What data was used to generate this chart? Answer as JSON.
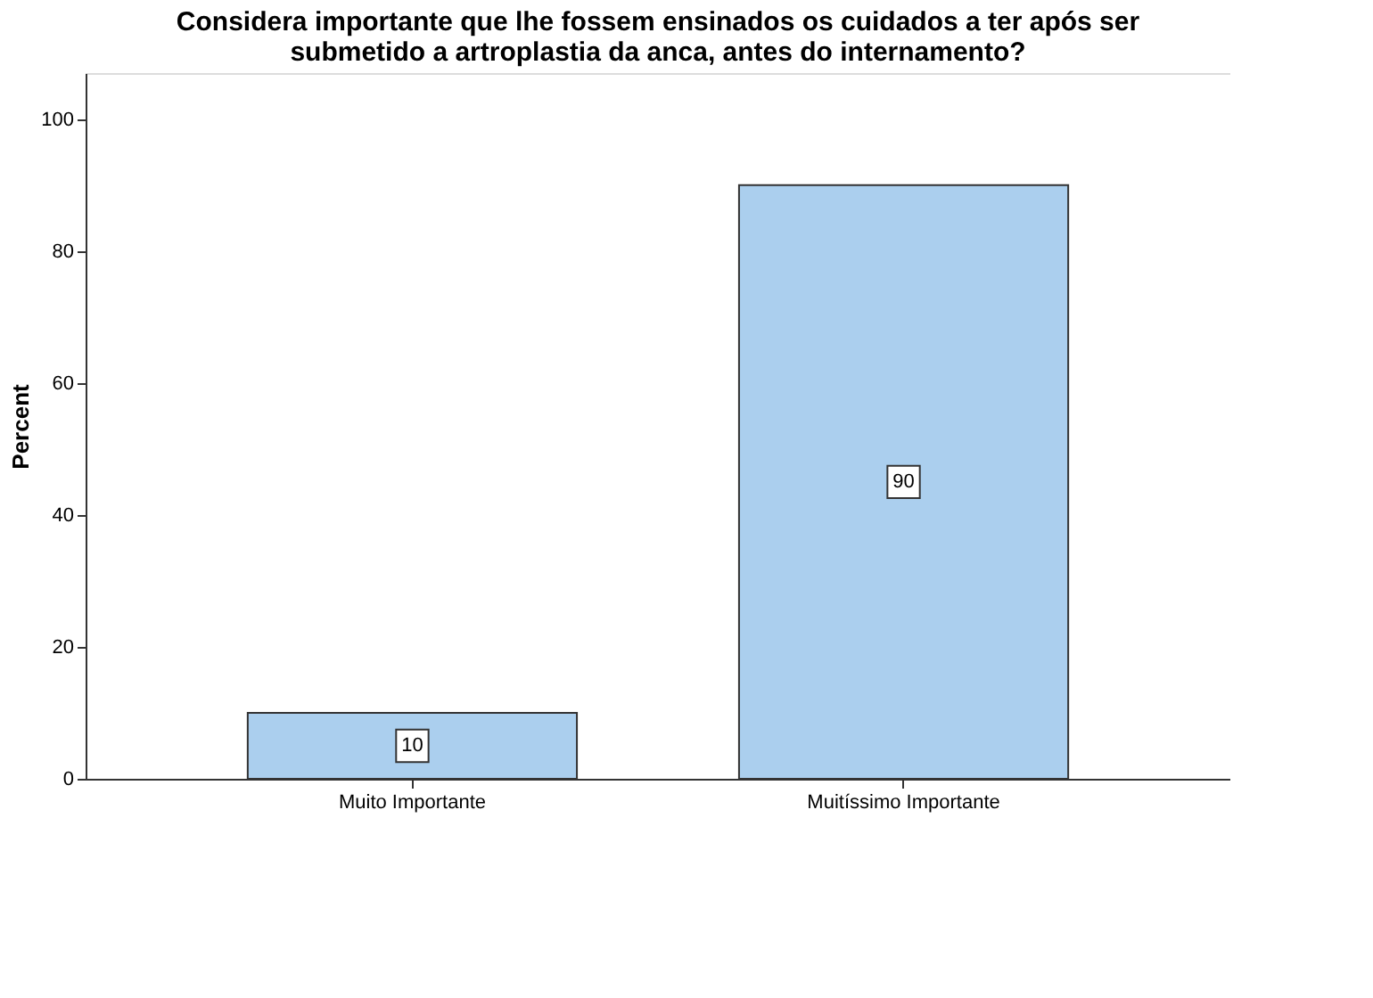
{
  "chart_data": {
    "type": "bar",
    "title": "Considera importante que lhe fossem ensinados os cuidados a ter após ser\nsubmetido a artroplastia da anca, antes do internamento?",
    "ylabel": "Percent",
    "categories": [
      "Muito Importante",
      "Muitíssimo Importante"
    ],
    "values": [
      10,
      90
    ],
    "color": "#abcfee",
    "ylim": [
      0,
      107
    ],
    "yticks": [
      0,
      20,
      40,
      60,
      80,
      100
    ],
    "grid": false,
    "data_labels": true
  }
}
